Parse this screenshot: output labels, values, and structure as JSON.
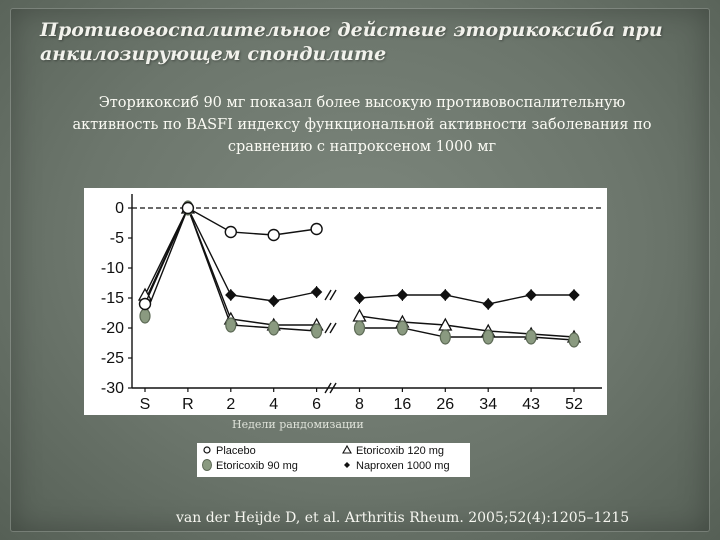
{
  "slide": {
    "title": "Противовоспалительное действие эторикоксиба при анкилозирующем спондилите",
    "subtitle": "Эторикоксиб 90 мг показал более высокую противовоспалительную активность по BASFI индексу функциональной активности заболевания по сравнению с напроксеном 1000 мг",
    "citation": "van der Heijde D, et al. Arthritis Rheum. 2005;52(4):1205–1215"
  },
  "colors": {
    "background": "#6c766c",
    "text": "#f2f2ec",
    "series_line": "#111111",
    "etoricoxib_90_fill": "#8a9a80"
  },
  "chart_data": {
    "type": "line",
    "title": "",
    "xlabel": "Недели рандомизации",
    "ylabel": "",
    "categories": [
      "S",
      "R",
      "2",
      "4",
      "6",
      "8",
      "16",
      "26",
      "34",
      "43",
      "52"
    ],
    "yticks": [
      0,
      -5,
      -10,
      -15,
      -20,
      -25,
      -30
    ],
    "ylim": [
      -30,
      1
    ],
    "baseline_dashed": 0,
    "grid": false,
    "legend_position": "bottom",
    "axis_breaks": [
      "6",
      "8"
    ],
    "series": [
      {
        "name": "Placebo",
        "marker": "circle-open",
        "color": "#111111",
        "values": [
          -16,
          0,
          -4,
          -4.5,
          -3.5,
          null,
          null,
          null,
          null,
          null,
          null
        ]
      },
      {
        "name": "Etoricoxib 120 mg",
        "marker": "triangle-open",
        "color": "#111111",
        "values": [
          -14.5,
          0,
          -18.5,
          -19.5,
          -19.5,
          -18,
          -19,
          -19.5,
          -20.5,
          -21,
          -21.5
        ]
      },
      {
        "name": "Etoricoxib 90 mg",
        "marker": "circle-filled-gray",
        "color": "#8a9a80",
        "values": [
          -18,
          0,
          -19.5,
          -20,
          -20.5,
          -20,
          -20,
          -21.5,
          -21.5,
          -21.5,
          -22
        ]
      },
      {
        "name": "Naproxen 1000 mg",
        "marker": "diamond-filled",
        "color": "#111111",
        "values": [
          -15.5,
          0,
          -14.5,
          -15.5,
          -14,
          -15,
          -14.5,
          -14.5,
          -16,
          -14.5,
          -14.5
        ]
      }
    ]
  }
}
